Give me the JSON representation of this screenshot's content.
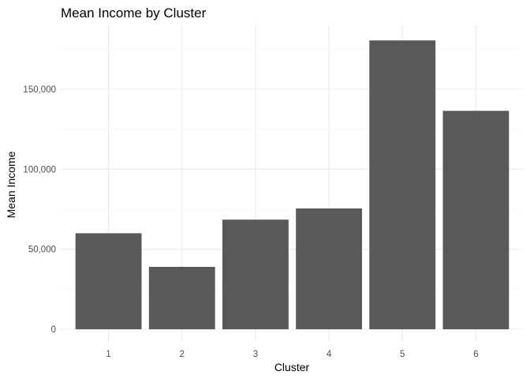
{
  "chart_data": {
    "type": "bar",
    "title": "Mean Income by Cluster",
    "xlabel": "Cluster",
    "ylabel": "Mean Income",
    "categories": [
      "1",
      "2",
      "3",
      "4",
      "5",
      "6"
    ],
    "values": [
      60000,
      39000,
      68500,
      75500,
      180500,
      136500
    ],
    "ylim": [
      0,
      189000
    ],
    "yticks": [
      0,
      50000,
      100000,
      150000
    ],
    "ytick_labels": [
      "0",
      "50,000",
      "100,000",
      "150,000"
    ],
    "grid": true,
    "bar_color": "#595959",
    "grid_color": "#ebebeb"
  }
}
